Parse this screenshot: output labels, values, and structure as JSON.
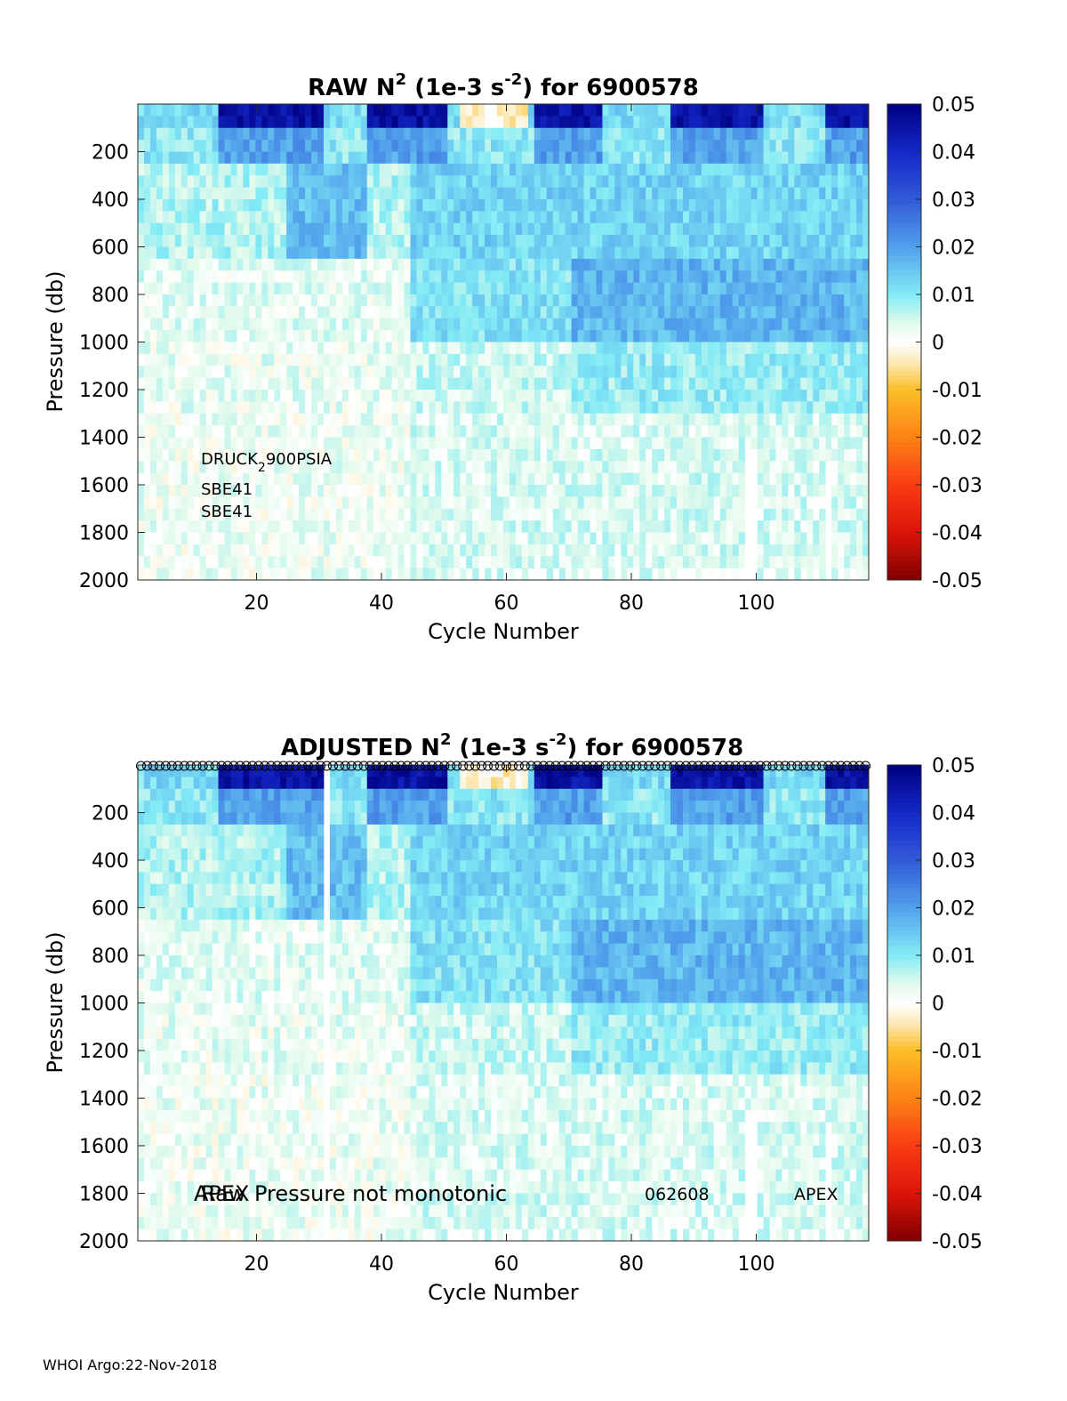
{
  "chart_data": [
    {
      "type": "heatmap",
      "title_prefix": "RAW N",
      "title_sup": "2",
      "title_mid": " (1e-3 s",
      "title_sup2": "-2",
      "title_suffix": ") for 6900578",
      "xlabel": "Cycle Number",
      "ylabel": "Pressure (db)",
      "xlim": [
        1,
        118
      ],
      "ylim": [
        2000,
        0
      ],
      "x_ticks": [
        "20",
        "40",
        "60",
        "80",
        "100"
      ],
      "y_ticks": [
        "200",
        "400",
        "600",
        "800",
        "1000",
        "1200",
        "1400",
        "1600",
        "1800",
        "2000"
      ],
      "colorbar_ticks": [
        "0.05",
        "0.04",
        "0.03",
        "0.02",
        "0.01",
        "0",
        "-0.01",
        "-0.02",
        "-0.03",
        "-0.04",
        "-0.05"
      ],
      "clim": [
        -0.05,
        0.05
      ],
      "colormap": "blue-cyan-white-yellow-red",
      "annotation_sensor_prefix": "DRUCK",
      "annotation_sensor_sub": "2",
      "annotation_sensor_suffix": "900PSIA",
      "annotation_ctd_1": "SBE41",
      "annotation_ctd_2": "SBE41",
      "gaps": [
        {
          "cycles": [
            99,
            100
          ],
          "pressure_from": 1460
        },
        {
          "cycles": [
            112,
            112
          ],
          "pressure_from": 1510
        }
      ],
      "missing_bottom_cycles": [
        52,
        54,
        56,
        58,
        60,
        62,
        64,
        66,
        68,
        72,
        75,
        78,
        81,
        84,
        86,
        88,
        90,
        92,
        94,
        96,
        98,
        103,
        106,
        108,
        110,
        114,
        116
      ]
    },
    {
      "type": "heatmap",
      "title_prefix": "ADJUSTED N",
      "title_sup": "2",
      "title_mid": " (1e-3 s",
      "title_sup2": "-2",
      "title_suffix": ") for 6900578",
      "xlabel": "Cycle Number",
      "ylabel": "Pressure (db)",
      "xlim": [
        1,
        118
      ],
      "ylim": [
        2000,
        0
      ],
      "x_ticks": [
        "20",
        "40",
        "60",
        "80",
        "100"
      ],
      "y_ticks": [
        "200",
        "400",
        "600",
        "800",
        "1000",
        "1200",
        "1400",
        "1600",
        "1800",
        "2000"
      ],
      "colorbar_ticks": [
        "0.05",
        "0.04",
        "0.03",
        "0.02",
        "0.01",
        "0",
        "-0.01",
        "-0.02",
        "-0.03",
        "-0.04",
        "-0.05"
      ],
      "clim": [
        -0.05,
        0.05
      ],
      "colormap": "blue-cyan-white-yellow-red",
      "qc_markers": "o at top for every cycle",
      "annotation_overlap_1": "APEX",
      "annotation_overlap_2": "Raw",
      "annotation_main": "Pressure not monotonic",
      "annotation_firmware": "062608",
      "annotation_platform": "APEX",
      "gaps": [
        {
          "cycles": [
            31,
            31
          ],
          "pressure_from": 0
        },
        {
          "cycles": [
            99,
            100
          ],
          "pressure_from": 1460
        },
        {
          "cycles": [
            112,
            112
          ],
          "pressure_from": 1510
        }
      ],
      "missing_bottom_cycles": [
        9,
        31,
        52,
        54,
        56,
        58,
        60,
        62,
        64,
        66,
        68,
        72,
        75,
        78,
        81,
        84,
        86,
        88,
        90,
        92,
        94,
        96,
        98,
        103,
        106,
        108,
        110,
        114,
        116
      ]
    }
  ],
  "footer": "WHOI Argo:22-Nov-2018",
  "icons": {}
}
